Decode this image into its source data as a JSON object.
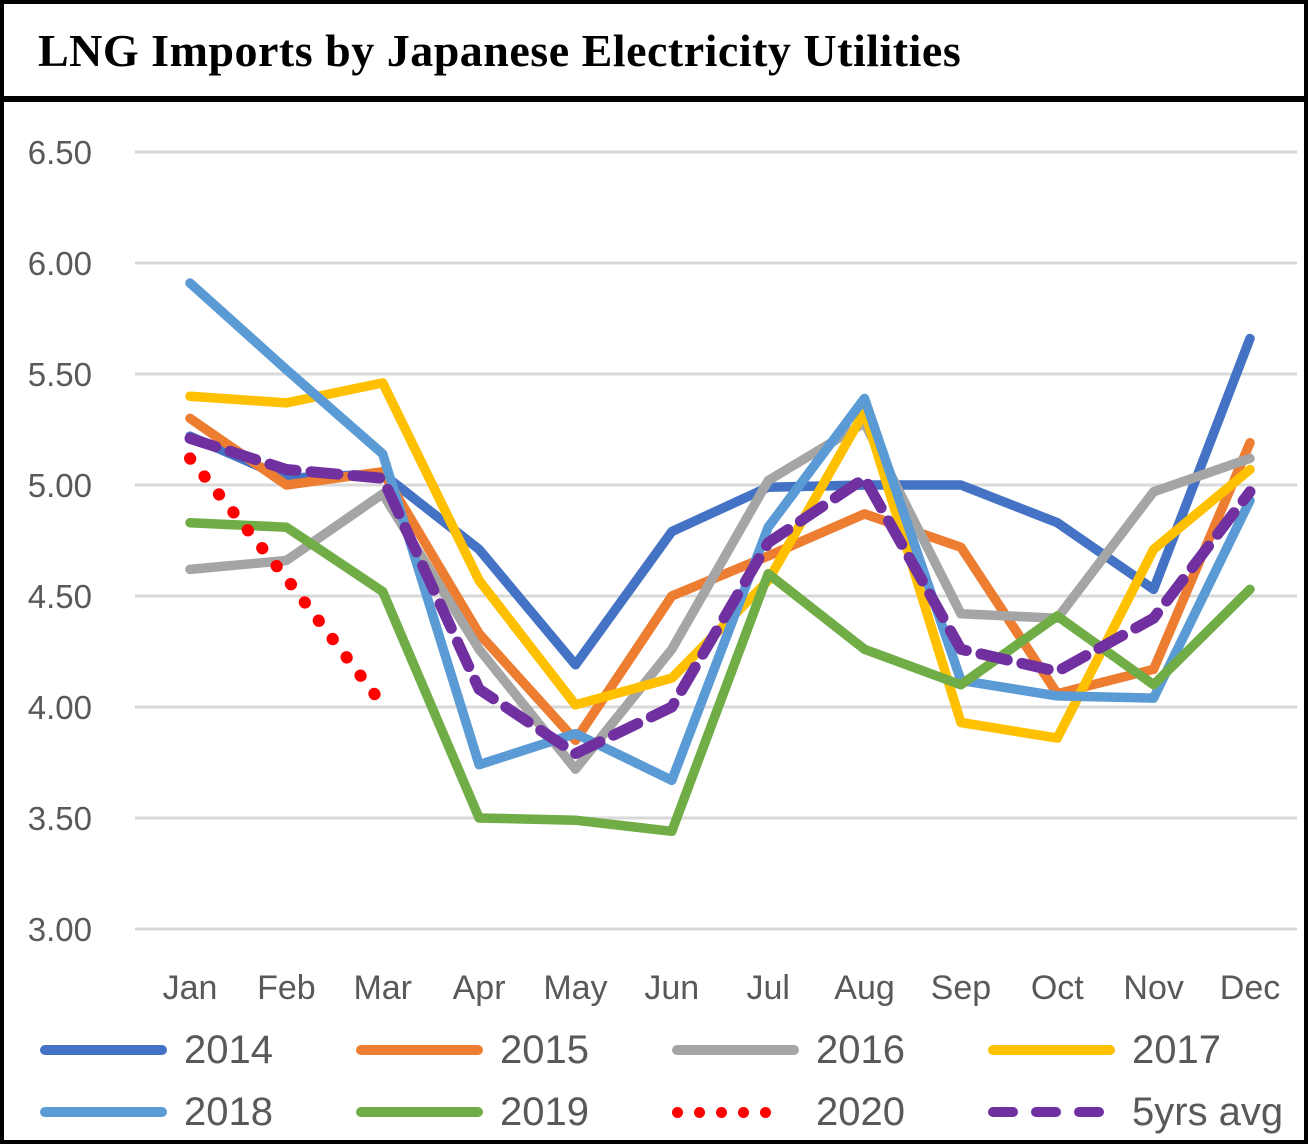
{
  "title": "LNG Imports by Japanese Electricity Utilities",
  "colors": {
    "text": "#595959",
    "gridline": "#D9D9D9",
    "border": "#000000"
  },
  "chart_data": {
    "type": "line",
    "title": "LNG Imports by Japanese Electricity Utilities",
    "xlabel": "",
    "ylabel": "",
    "ylim": [
      3.0,
      6.5
    ],
    "grid": true,
    "legend_position": "bottom",
    "categories": [
      "Jan",
      "Feb",
      "Mar",
      "Apr",
      "May",
      "Jun",
      "Jul",
      "Aug",
      "Sep",
      "Oct",
      "Nov",
      "Dec"
    ],
    "yticks": [
      6.5,
      6.0,
      5.5,
      5.0,
      4.5,
      4.0,
      3.5,
      3.0
    ],
    "ytick_labels": [
      "6.50",
      "6.00",
      "5.50",
      "5.00",
      "4.50",
      "4.00",
      "3.50",
      "3.00"
    ],
    "series": [
      {
        "name": "2014",
        "color": "#4472C4",
        "style": "solid",
        "values": [
          5.22,
          5.03,
          5.05,
          4.71,
          4.19,
          4.79,
          4.99,
          5.0,
          5.0,
          4.83,
          4.53,
          5.66
        ]
      },
      {
        "name": "2015",
        "color": "#ED7D31",
        "style": "solid",
        "values": [
          5.3,
          5.0,
          5.06,
          4.33,
          3.85,
          4.5,
          4.68,
          4.87,
          4.72,
          4.06,
          4.17,
          5.19
        ]
      },
      {
        "name": "2016",
        "color": "#A5A5A5",
        "style": "solid",
        "values": [
          4.62,
          4.66,
          4.96,
          4.26,
          3.72,
          4.26,
          5.02,
          5.28,
          4.42,
          4.4,
          4.97,
          5.12
        ]
      },
      {
        "name": "2017",
        "color": "#FFC000",
        "style": "solid",
        "values": [
          5.4,
          5.37,
          5.46,
          4.57,
          4.01,
          4.13,
          4.57,
          5.33,
          3.93,
          3.86,
          4.71,
          5.07
        ]
      },
      {
        "name": "2018",
        "color": "#5B9BD5",
        "style": "solid",
        "values": [
          5.91,
          5.52,
          5.14,
          3.74,
          3.88,
          3.67,
          4.81,
          5.39,
          4.12,
          4.05,
          4.04,
          4.93
        ]
      },
      {
        "name": "2019",
        "color": "#70AD47",
        "style": "solid",
        "values": [
          4.83,
          4.81,
          4.52,
          3.5,
          3.49,
          3.44,
          4.6,
          4.26,
          4.1,
          4.41,
          4.1,
          4.53
        ]
      },
      {
        "name": "2020",
        "color": "#FF0000",
        "style": "dotted",
        "values": [
          5.12,
          4.58,
          4.01,
          null,
          null,
          null,
          null,
          null,
          null,
          null,
          null,
          null
        ]
      },
      {
        "name": "5yrs avg",
        "color": "#7030A0",
        "style": "dashed",
        "values": [
          5.21,
          5.07,
          5.03,
          4.08,
          3.79,
          4.0,
          4.74,
          5.03,
          4.26,
          4.16,
          4.4,
          4.97
        ]
      }
    ]
  }
}
